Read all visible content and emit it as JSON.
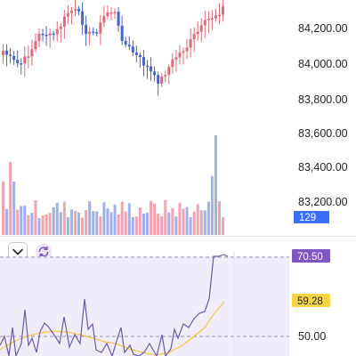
{
  "price_axis": {
    "labels": [
      "84,200.00",
      "84,000.00",
      "83,800.00",
      "83,600.00",
      "83,400.00",
      "83,200.00"
    ],
    "values": [
      84200,
      84000,
      83800,
      83600,
      83400,
      83200
    ]
  },
  "volume_badge": {
    "text": "129",
    "color": "#3b6ff5"
  },
  "rsi_panel": {
    "rsi_badge": {
      "text": "70.50",
      "color": "#7e57c2"
    },
    "ma_badge": {
      "text": "59.28",
      "color": "#f5d547"
    },
    "level_label": "50.00",
    "levels": [
      70,
      50,
      30
    ]
  },
  "icons": {
    "collapse": "chevron-down-icon",
    "sync": "sync-icon"
  },
  "colors": {
    "up": "#e06a78",
    "down": "#4a63c9",
    "vol_up": "#f0a4b0",
    "vol_down": "#9fb0ea",
    "rsi_line": "#7e57c2",
    "rsi_ma": "#f5c744",
    "rsi_band": "#f1ecfa"
  }
}
